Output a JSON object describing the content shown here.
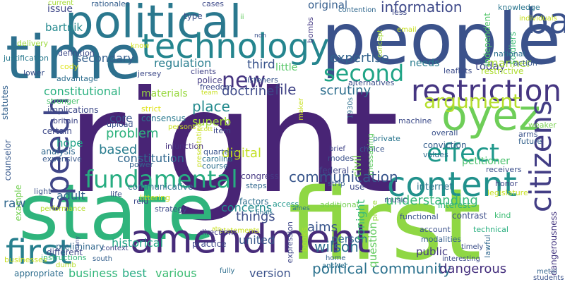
{
  "words": [
    {
      "text": "right",
      "color": "#482475"
    },
    {
      "text": "first",
      "color": "#8fd744"
    },
    {
      "text": "state",
      "color": "#2fb47c"
    },
    {
      "text": "people",
      "color": "#3b528b"
    },
    {
      "text": "time",
      "color": "#2d708e"
    },
    {
      "text": "political",
      "color": "#2a788e"
    },
    {
      "text": "amendment",
      "color": "#472c7a"
    },
    {
      "text": "technology",
      "color": "#25858e"
    },
    {
      "text": "content",
      "color": "#21918c"
    },
    {
      "text": "restriction",
      "color": "#453581"
    },
    {
      "text": "oyez",
      "color": "#6ece58"
    },
    {
      "text": "speech",
      "color": "#404688"
    },
    {
      "text": "first",
      "color": "#277f8e"
    },
    {
      "text": "fundamental",
      "color": "#27ad81"
    },
    {
      "text": "citizens",
      "color": "#433e85"
    },
    {
      "text": "effect",
      "color": "#1f988b"
    },
    {
      "text": "argument",
      "color": "#b5de2b"
    },
    {
      "text": "second",
      "color": "#20a486"
    },
    {
      "text": "bad",
      "color": "#3b528b"
    },
    {
      "text": "new",
      "color": "#463480"
    },
    {
      "text": "information",
      "color": "#3e4989"
    },
    {
      "text": "political community",
      "color": "#2c728e"
    },
    {
      "text": "expertise",
      "color": "#33638d"
    },
    {
      "text": "communication",
      "color": "#39568c"
    },
    {
      "text": "understanding",
      "color": "#35b779"
    },
    {
      "text": "doctrine",
      "color": "#3e4a89"
    },
    {
      "text": "regulation",
      "color": "#287d8e"
    },
    {
      "text": "scrutiny",
      "color": "#2e6e8e"
    },
    {
      "text": "constitutional",
      "color": "#2ab07f"
    },
    {
      "text": "constitution",
      "color": "#31688e"
    },
    {
      "text": "problem",
      "color": "#2db27d"
    },
    {
      "text": "digital",
      "color": "#c2df23"
    },
    {
      "text": "secondary",
      "color": "#34608d"
    },
    {
      "text": "third",
      "color": "#3a548c"
    },
    {
      "text": "today",
      "color": "#3f4889"
    },
    {
      "text": "manner",
      "color": "#a5db36"
    },
    {
      "text": "place",
      "color": "#238a8d"
    },
    {
      "text": "superb",
      "color": "#a0da39"
    },
    {
      "text": "based",
      "color": "#287c8e"
    },
    {
      "text": "file",
      "color": "#414487"
    },
    {
      "text": "things",
      "color": "#3d4e8a"
    },
    {
      "text": "concerns",
      "color": "#228c8d"
    },
    {
      "text": "person",
      "color": "#31678e"
    },
    {
      "text": "wilson",
      "color": "#2e6d8e"
    },
    {
      "text": "aims",
      "color": "#39568c"
    },
    {
      "text": "public",
      "color": "#443983"
    },
    {
      "text": "dangerous",
      "color": "#46307e"
    },
    {
      "text": "historical",
      "color": "#21a685"
    },
    {
      "text": "united",
      "color": "#38588c"
    },
    {
      "text": "business",
      "color": "#32b67a"
    },
    {
      "text": "best",
      "color": "#25ab82"
    },
    {
      "text": "various",
      "color": "#3dbc74"
    },
    {
      "text": "version",
      "color": "#3b528b"
    },
    {
      "text": "adult",
      "color": "#34618d"
    },
    {
      "text": "hope",
      "color": "#1fa287"
    },
    {
      "text": "core",
      "color": "#39568c"
    },
    {
      "text": "internet",
      "color": "#2b748e"
    },
    {
      "text": "materials",
      "color": "#98d83e"
    },
    {
      "text": "issue",
      "color": "#3f4788"
    },
    {
      "text": "original",
      "color": "#355e8d"
    },
    {
      "text": "bartnik",
      "color": "#23898e"
    },
    {
      "text": "little",
      "color": "#56c667"
    },
    {
      "text": "needs",
      "color": "#287c8e"
    },
    {
      "text": "raw",
      "color": "#31688e"
    },
    {
      "text": "tonight",
      "color": "#3cbb75"
    },
    {
      "text": "question",
      "color": "#63cb5f"
    },
    {
      "text": "civil",
      "color": "#79d151"
    },
    {
      "text": "petitioner",
      "color": "#4ac16d"
    },
    {
      "text": "interest",
      "color": "#30b37d"
    },
    {
      "text": "knowledge",
      "color": "#2a768e"
    },
    {
      "text": "soldiers",
      "color": "#3bbb75"
    },
    {
      "text": "independent",
      "color": "#52c569"
    },
    {
      "text": "national",
      "color": "#2c718e"
    },
    {
      "text": "action",
      "color": "#38598c"
    },
    {
      "text": "restrictive",
      "color": "#addc30"
    },
    {
      "text": "leaflets",
      "color": "#3d4d8a"
    },
    {
      "text": "alternatives",
      "color": "#3c4f8a"
    },
    {
      "text": "listeners",
      "color": "#39568c"
    },
    {
      "text": "clients",
      "color": "#414287"
    },
    {
      "text": "police",
      "color": "#443b84"
    },
    {
      "text": "freedom",
      "color": "#3e4a89"
    },
    {
      "text": "consensus",
      "color": "#29798e"
    },
    {
      "text": "strict",
      "color": "#dfe318"
    },
    {
      "text": "quarters",
      "color": "#3a548c"
    },
    {
      "text": "carolina",
      "color": "#2c718e"
    },
    {
      "text": "course",
      "color": "#2d708e"
    },
    {
      "text": "item",
      "color": "#3e4989"
    },
    {
      "text": "congress",
      "color": "#453882"
    },
    {
      "text": "steps",
      "color": "#31678e"
    },
    {
      "text": "factors",
      "color": "#2e6f8e"
    },
    {
      "text": "federal",
      "color": "#3f4788"
    },
    {
      "text": "modes",
      "color": "#3b528b"
    },
    {
      "text": "strip",
      "color": "#34608d"
    },
    {
      "text": "brief",
      "color": "#404588"
    },
    {
      "text": "choice",
      "color": "#39558c"
    },
    {
      "text": "private",
      "color": "#2a768e"
    },
    {
      "text": "machine",
      "color": "#3e4c8a"
    },
    {
      "text": "conviction",
      "color": "#355f8d"
    },
    {
      "text": "values",
      "color": "#2e6e8e"
    },
    {
      "text": "arms",
      "color": "#3b528b"
    },
    {
      "text": "future",
      "color": "#34618d"
    },
    {
      "text": "weaker",
      "color": "#7ad151"
    },
    {
      "text": "receivers",
      "color": "#3c508b"
    },
    {
      "text": "legislature",
      "color": "#c8e020"
    },
    {
      "text": "honor",
      "color": "#404688"
    },
    {
      "text": "kind",
      "color": "#3cbc74"
    },
    {
      "text": "access",
      "color": "#1f978b"
    },
    {
      "text": "additional",
      "color": "#75d054"
    },
    {
      "text": "functional",
      "color": "#3a548c"
    },
    {
      "text": "contrast",
      "color": "#3d4d8a"
    },
    {
      "text": "account",
      "color": "#3b528b"
    },
    {
      "text": "technical",
      "color": "#29af7f"
    },
    {
      "text": "modalities",
      "color": "#355f8d"
    },
    {
      "text": "lawful",
      "color": "#31688e"
    },
    {
      "text": "timely",
      "color": "#3c4f8a"
    },
    {
      "text": "interesting",
      "color": "#3e4a89"
    },
    {
      "text": "dangerousness",
      "color": "#453781"
    },
    {
      "text": "metal",
      "color": "#33638d"
    },
    {
      "text": "students",
      "color": "#3b528b"
    },
    {
      "text": "books",
      "color": "#addc30"
    },
    {
      "text": "expression",
      "color": "#3f4788"
    },
    {
      "text": "finals",
      "color": "#2c718e"
    },
    {
      "text": "statements",
      "color": "#c8e020"
    },
    {
      "text": "home",
      "color": "#34608d"
    },
    {
      "text": "answer",
      "color": "#2c728e"
    },
    {
      "text": "piece",
      "color": "#9bd93c"
    },
    {
      "text": "music",
      "color": "#3b528b"
    },
    {
      "text": "ames",
      "color": "#2d708e"
    },
    {
      "text": "messaging",
      "color": "#5ec962"
    },
    {
      "text": "overall",
      "color": "#3b528b"
    },
    {
      "text": "south",
      "color": "#34608d"
    },
    {
      "text": "context",
      "color": "#404688"
    },
    {
      "text": "fully",
      "color": "#2e6e8e"
    },
    {
      "text": "practice",
      "color": "#3e4989"
    },
    {
      "text": "directions",
      "color": "#443983"
    },
    {
      "text": "preliminary",
      "color": "#31688e"
    },
    {
      "text": "appropriate",
      "color": "#2e6e8e"
    },
    {
      "text": "dumb",
      "color": "#b5de2b"
    },
    {
      "text": "businesses",
      "color": "#c8e020"
    },
    {
      "text": "different",
      "color": "#3e4989"
    },
    {
      "text": "instructions",
      "color": "#35b779"
    },
    {
      "text": "counselor",
      "color": "#38598c"
    },
    {
      "text": "example",
      "color": "#75d054"
    },
    {
      "text": "statutes",
      "color": "#34618d"
    },
    {
      "text": "certain",
      "color": "#3e4989"
    },
    {
      "text": "analysis",
      "color": "#31688e"
    },
    {
      "text": "expensive",
      "color": "#38598c"
    },
    {
      "text": "britain",
      "color": "#3f4788"
    },
    {
      "text": "implications",
      "color": "#3e4a89"
    },
    {
      "text": "stronger",
      "color": "#4ac16d"
    },
    {
      "text": "advantage",
      "color": "#2e6e8e"
    },
    {
      "text": "lower",
      "color": "#3b528b"
    },
    {
      "text": "cody",
      "color": "#dfe318"
    },
    {
      "text": "definition",
      "color": "#3e4989"
    },
    {
      "text": "justification",
      "color": "#29798e"
    },
    {
      "text": "delivery",
      "color": "#9bd93c"
    },
    {
      "text": "current",
      "color": "#a5db36"
    },
    {
      "text": "rationales",
      "color": "#355f8d"
    },
    {
      "text": "cases",
      "color": "#3e4a89"
    },
    {
      "text": "ii",
      "color": "#63cb5f"
    },
    {
      "text": "type",
      "color": "#3b528b"
    },
    {
      "text": "know",
      "color": "#d2e21b"
    },
    {
      "text": "jersey",
      "color": "#3e4a89"
    },
    {
      "text": "upload",
      "color": "#3b528b"
    },
    {
      "text": "injunction",
      "color": "#46307e"
    },
    {
      "text": "power",
      "color": "#34618d"
    },
    {
      "text": "communicative",
      "color": "#2e6e8e"
    },
    {
      "text": "life",
      "color": "#3b528b"
    },
    {
      "text": "reid",
      "color": "#3e4989"
    },
    {
      "text": "littering",
      "color": "#d2e21b"
    },
    {
      "text": "strategy",
      "color": "#3e4a89"
    },
    {
      "text": "light",
      "color": "#3b528b"
    },
    {
      "text": "use",
      "color": "#3e4989"
    },
    {
      "text": "performance",
      "color": "#b5de2b"
    },
    {
      "text": "contention",
      "color": "#31688e"
    },
    {
      "text": "less",
      "color": "#3e4989"
    },
    {
      "text": "bombs",
      "color": "#443983"
    },
    {
      "text": "concept",
      "color": "#a5db36"
    },
    {
      "text": "email",
      "color": "#c8e020"
    },
    {
      "text": "1930s",
      "color": "#2d708e"
    },
    {
      "text": "maker",
      "color": "#c8e020"
    },
    {
      "text": "individuals",
      "color": "#c8e020"
    },
    {
      "text": "non",
      "color": "#3b528b"
    },
    {
      "text": "team",
      "color": "#c8e020"
    },
    {
      "text": "scott",
      "color": "#c8e020"
    },
    {
      "text": "persons",
      "color": "#c8e020"
    },
    {
      "text": "many",
      "color": "#3e4989"
    },
    {
      "text": "presentation",
      "color": "#c8e020"
    },
    {
      "text": "ato",
      "color": "#c8e020"
    },
    {
      "text": "z",
      "color": "#c8e020"
    }
  ]
}
